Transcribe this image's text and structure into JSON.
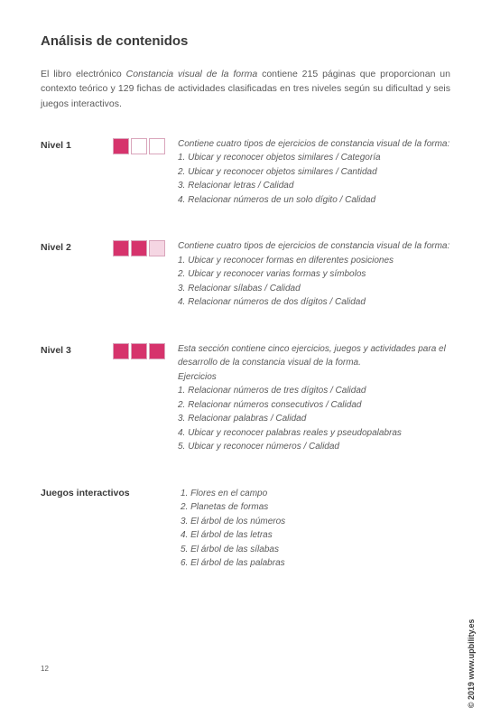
{
  "title": "Análisis de contenidos",
  "intro": {
    "pre": "El libro electrónico ",
    "book_title": "Constancia visual de la forma",
    "post": " contiene 215 páginas que proporcionan un contexto teórico y 129 fichas de actividades clasificadas en tres niveles según su dificultad y seis juegos interactivos."
  },
  "colors": {
    "filled": "#d6336c",
    "light": "#f5d6e3",
    "empty": "#ffffff",
    "border": "#d9a5bb"
  },
  "levels": [
    {
      "label": "Nivel 1",
      "squares": [
        "filled",
        "empty",
        "empty"
      ],
      "heading": "Contiene cuatro tipos de ejercicios de constancia visual de la forma:",
      "items": [
        "1. Ubicar y reconocer objetos similares / Categoría",
        "2. Ubicar y reconocer objetos similares / Cantidad",
        "3. Relacionar letras / Calidad",
        "4. Relacionar números de un solo dígito / Calidad"
      ]
    },
    {
      "label": "Nivel 2",
      "squares": [
        "filled",
        "filled",
        "light"
      ],
      "heading": "Contiene cuatro tipos de ejercicios de constancia visual de la forma:",
      "items": [
        "1. Ubicar y reconocer formas en diferentes posiciones",
        "2. Ubicar y reconocer varias formas y símbolos",
        "3. Relacionar sílabas / Calidad",
        "4. Relacionar números de dos dígitos / Calidad"
      ]
    },
    {
      "label": "Nivel 3",
      "squares": [
        "filled",
        "filled",
        "filled"
      ],
      "heading": "Esta sección contiene cinco ejercicios, juegos y actividades para el desarrollo de la constancia visual de la forma.",
      "sub": "Ejercicios",
      "items": [
        "1. Relacionar números de tres dígitos / Calidad",
        "2. Relacionar números consecutivos / Calidad",
        "3. Relacionar palabras / Calidad",
        "4. Ubicar y reconocer palabras reales y pseudopalabras",
        "5. Ubicar y reconocer números / Calidad"
      ]
    }
  ],
  "games": {
    "label": "Juegos interactivos",
    "items": [
      "1. Flores en el campo",
      "2. Planetas de formas",
      "3. El árbol de los números",
      "4. El árbol de las letras",
      "5. El árbol de las sílabas",
      "6. El árbol de las palabras"
    ]
  },
  "page_number": "12",
  "copyright": "© 2019 www.upbility.es"
}
